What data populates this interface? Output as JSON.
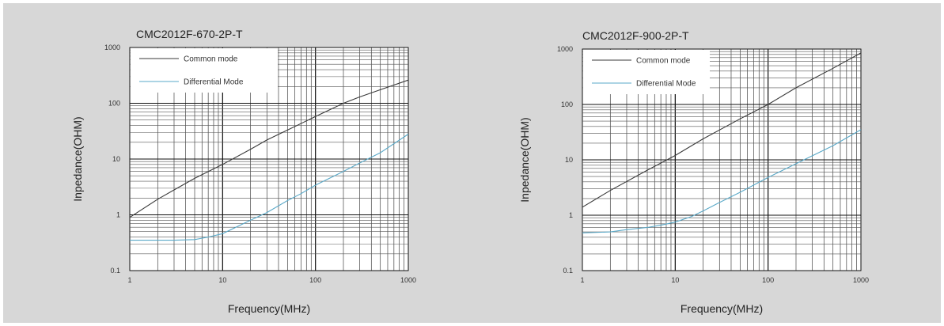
{
  "chart_data": [
    {
      "type": "line",
      "title": "CMC2012F-670-2P-T",
      "xlabel": "Frequency(MHz)",
      "ylabel": "Inpedance(OHM)",
      "x_scale": "log",
      "y_scale": "log",
      "xlim": [
        1,
        1000
      ],
      "ylim": [
        0.1,
        1000
      ],
      "x_ticks": [
        "1",
        "10",
        "100",
        "1000"
      ],
      "y_ticks": [
        "0.1",
        "1",
        "10",
        "100",
        "1000"
      ],
      "grid": true,
      "legend": "top-left",
      "series": [
        {
          "name": "Common mode",
          "color": "#3a3a3a",
          "x": [
            1,
            2,
            3,
            5,
            10,
            20,
            30,
            50,
            100,
            200,
            300,
            500,
            1000
          ],
          "y": [
            0.9,
            1.9,
            2.8,
            4.5,
            8,
            15,
            22,
            33,
            58,
            100,
            130,
            175,
            260
          ]
        },
        {
          "name": "Differential Mode",
          "color": "#5aa9c8",
          "x": [
            1,
            2,
            3,
            5,
            7,
            10,
            20,
            30,
            50,
            70,
            100,
            200,
            300,
            500,
            1000
          ],
          "y": [
            0.35,
            0.35,
            0.35,
            0.36,
            0.4,
            0.46,
            0.8,
            1.1,
            1.8,
            2.4,
            3.4,
            6,
            8.5,
            13,
            28
          ]
        }
      ]
    },
    {
      "type": "line",
      "title": "CMC2012F-900-2P-T",
      "xlabel": "Frequency(MHz)",
      "ylabel": "Inpedance(OHM)",
      "x_scale": "log",
      "y_scale": "log",
      "xlim": [
        1,
        1000
      ],
      "ylim": [
        0.1,
        1000
      ],
      "x_ticks": [
        "1",
        "10",
        "100",
        "1000"
      ],
      "y_ticks": [
        "0.1",
        "1",
        "10",
        "100",
        "1000"
      ],
      "grid": true,
      "legend": "top-left",
      "series": [
        {
          "name": "Common mode",
          "color": "#3a3a3a",
          "x": [
            1,
            2,
            5,
            10,
            20,
            50,
            100,
            200,
            500,
            1000
          ],
          "y": [
            1.4,
            2.8,
            6.5,
            12,
            24,
            55,
            100,
            200,
            450,
            850
          ]
        },
        {
          "name": "Differential Mode",
          "color": "#5aa9c8",
          "x": [
            1,
            2,
            3,
            5,
            7,
            10,
            15,
            20,
            30,
            50,
            100,
            200,
            500,
            1000
          ],
          "y": [
            0.48,
            0.5,
            0.55,
            0.6,
            0.66,
            0.75,
            0.95,
            1.2,
            1.7,
            2.6,
            4.8,
            8.5,
            18,
            35
          ]
        }
      ]
    }
  ]
}
